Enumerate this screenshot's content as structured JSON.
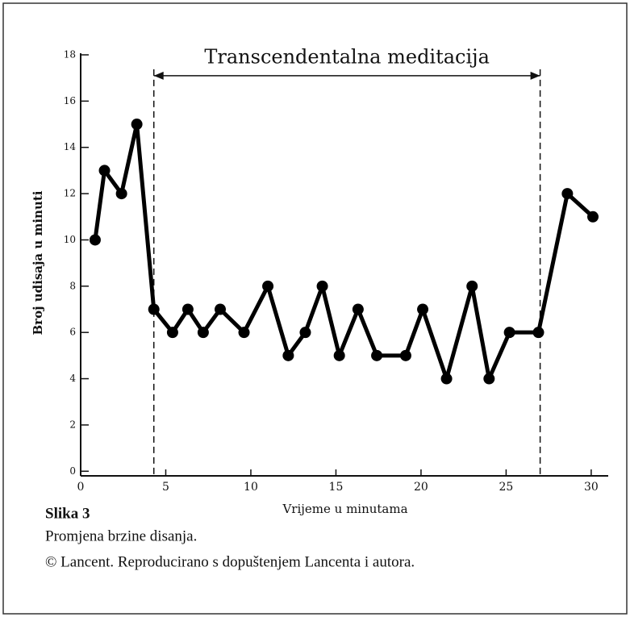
{
  "chart_data": {
    "type": "line",
    "ylabel": "Broj udisaja u minuti",
    "xlabel": "Vrijeme u minutama",
    "x": [
      0.85,
      1.4,
      2.4,
      3.3,
      4.3,
      5.4,
      6.3,
      7.2,
      8.2,
      9.6,
      11.0,
      12.2,
      13.2,
      14.2,
      15.2,
      16.3,
      17.4,
      19.1,
      20.1,
      21.5,
      23.0,
      24.0,
      25.2,
      26.9,
      28.6,
      30.1
    ],
    "series": [
      {
        "color": "#000000",
        "values": [
          10,
          13,
          12,
          15,
          7,
          6,
          7,
          6,
          7,
          6,
          8,
          5,
          6,
          8,
          5,
          7,
          5,
          5,
          7,
          4,
          8,
          4,
          6,
          6,
          12,
          11
        ]
      }
    ],
    "xlim": [
      0,
      31
    ],
    "xticks": [
      0,
      5,
      10,
      15,
      20,
      25,
      30
    ],
    "ylim": [
      -0.2,
      18
    ],
    "yticks": [
      0,
      2,
      4,
      6,
      8,
      10,
      12,
      14,
      16,
      18
    ],
    "span": {
      "label": "Transcendentalna meditacija",
      "start": 4.3,
      "end": 27,
      "level": 17.1
    },
    "caption": {
      "title": "Slika 3",
      "text": "Promjena brzine disanja.",
      "credit": "© Lancent. Reproducirano s dopuštenjem Lancenta i autora."
    }
  }
}
